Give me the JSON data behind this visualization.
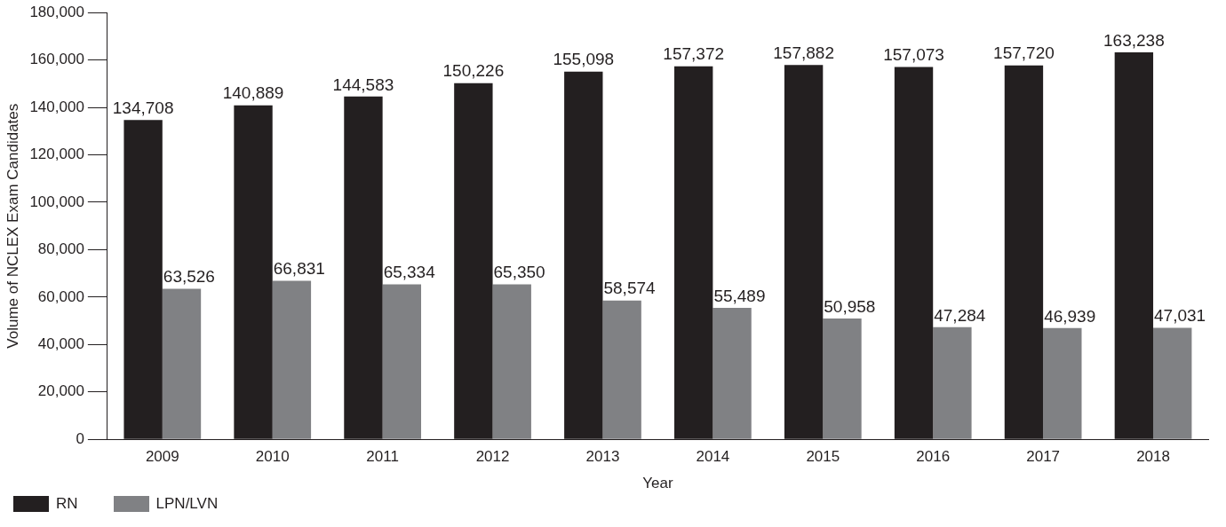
{
  "chart_data": {
    "type": "bar",
    "xlabel": "Year",
    "ylabel": "Volume of NCLEX Exam Candidates",
    "categories": [
      "2009",
      "2010",
      "2011",
      "2012",
      "2013",
      "2014",
      "2015",
      "2016",
      "2017",
      "2018"
    ],
    "series": [
      {
        "name": "RN",
        "color": "#231f20",
        "values": [
          134708,
          140889,
          144583,
          150226,
          155098,
          157372,
          157882,
          157073,
          157720,
          163238
        ],
        "value_labels": [
          "134,708",
          "140,889",
          "144,583",
          "150,226",
          "155,098",
          "157,372",
          "157,882",
          "157,073",
          "157,720",
          "163,238"
        ]
      },
      {
        "name": "LPN/LVN",
        "color": "#808184",
        "values": [
          63526,
          66831,
          65334,
          65350,
          58574,
          55489,
          50958,
          47284,
          46939,
          47031
        ],
        "value_labels": [
          "63,526",
          "66,831",
          "65,334",
          "65,350",
          "58,574",
          "55,489",
          "50,958",
          "47,284",
          "46,939",
          "47,031"
        ]
      }
    ],
    "ylim": [
      0,
      180000
    ],
    "yticks": [
      {
        "value": 0,
        "label": "0"
      },
      {
        "value": 20000,
        "label": "20,000"
      },
      {
        "value": 40000,
        "label": "40,000"
      },
      {
        "value": 60000,
        "label": "60,000"
      },
      {
        "value": 80000,
        "label": "80,000"
      },
      {
        "value": 100000,
        "label": "100,000"
      },
      {
        "value": 120000,
        "label": "120,000"
      },
      {
        "value": 140000,
        "label": "140,000"
      },
      {
        "value": 160000,
        "label": "160,000"
      },
      {
        "value": 180000,
        "label": "180,000"
      }
    ],
    "grid": false,
    "legend": "bottom left"
  }
}
